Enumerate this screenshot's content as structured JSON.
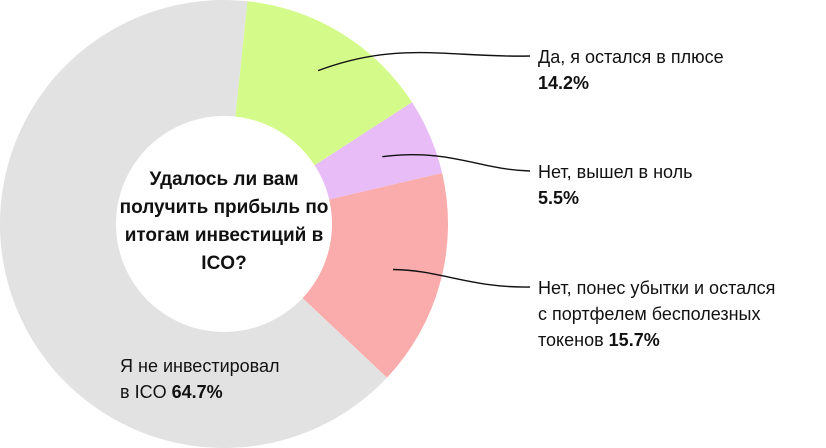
{
  "chart_data": {
    "type": "pie",
    "title": "Удалось ли вам получить прибыль по итогам инвестиций в ICO?",
    "slices": [
      {
        "label": "Да, я остался в плюсе",
        "value": 14.2,
        "value_text": "14.2%",
        "color": "#d4fb8a"
      },
      {
        "label": "Нет, вышел в ноль",
        "value": 5.5,
        "value_text": "5.5%",
        "color": "#e8bdf7"
      },
      {
        "label": "Нет, понес убытки и остался с портфелем бесполезных токенов",
        "label_lines": [
          "Нет, понес убытки и остался",
          "с портфелем бесполезных",
          "токенов"
        ],
        "value": 15.7,
        "value_text": "15.7%",
        "color": "#f9acab"
      },
      {
        "label": "Я не инвестировал в ICO",
        "label_lines": [
          "Я не инвестировал",
          "в ICO"
        ],
        "value": 64.7,
        "value_text": "64.7%",
        "color": "#e2e2e2"
      }
    ]
  }
}
